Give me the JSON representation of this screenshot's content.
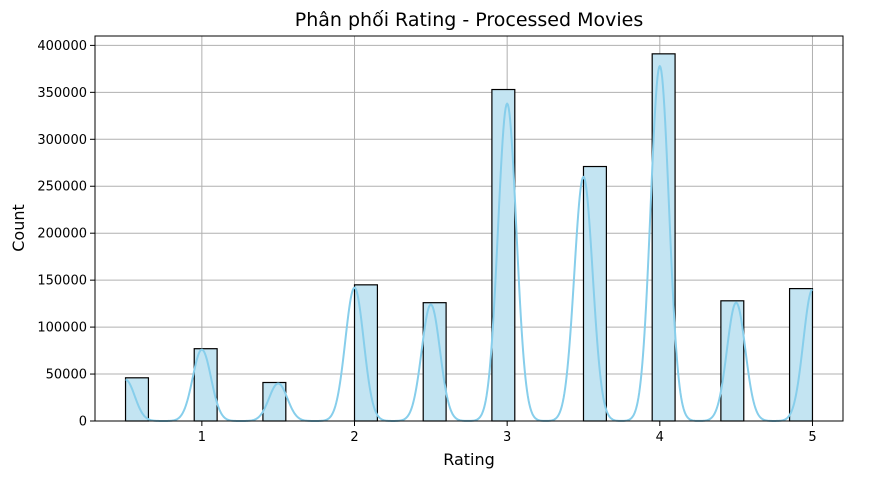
{
  "chart_data": {
    "type": "bar",
    "title": "Phân phối Rating - Processed Movies",
    "xlabel": "Rating",
    "ylabel": "Count",
    "xlim": [
      0.3,
      5.2
    ],
    "ylim": [
      0,
      410000
    ],
    "x_ticks": [
      1,
      2,
      3,
      4,
      5
    ],
    "x_tick_labels": [
      "1",
      "2",
      "3",
      "4",
      "5"
    ],
    "y_ticks": [
      0,
      50000,
      100000,
      150000,
      200000,
      250000,
      300000,
      350000,
      400000
    ],
    "y_tick_labels": [
      "0",
      "50000",
      "100000",
      "150000",
      "200000",
      "250000",
      "300000",
      "350000",
      "400000"
    ],
    "bin_width": 0.15,
    "bins": [
      {
        "left": 0.5,
        "count": 46000
      },
      {
        "left": 0.95,
        "count": 77000
      },
      {
        "left": 1.4,
        "count": 41000
      },
      {
        "left": 2.0,
        "count": 145000
      },
      {
        "left": 2.45,
        "count": 126000
      },
      {
        "left": 2.9,
        "count": 353000
      },
      {
        "left": 3.5,
        "count": 271000
      },
      {
        "left": 3.95,
        "count": 391000
      },
      {
        "left": 4.4,
        "count": 128000
      },
      {
        "left": 4.85,
        "count": 141000
      }
    ],
    "kde_peaks": [
      {
        "x": 0.5,
        "y": 44000
      },
      {
        "x": 1.0,
        "y": 76000
      },
      {
        "x": 1.5,
        "y": 40000
      },
      {
        "x": 2.0,
        "y": 142000
      },
      {
        "x": 2.5,
        "y": 124000
      },
      {
        "x": 3.0,
        "y": 338000
      },
      {
        "x": 3.5,
        "y": 260000
      },
      {
        "x": 4.0,
        "y": 378000
      },
      {
        "x": 4.5,
        "y": 126000
      },
      {
        "x": 5.0,
        "y": 140000
      }
    ],
    "kde_sigma": 0.06,
    "grid": true,
    "colors": {
      "bar_fill": "#c3e4f2",
      "bar_edge": "#000000",
      "kde_line": "#87ceeb",
      "grid": "#b0b0b0"
    }
  }
}
